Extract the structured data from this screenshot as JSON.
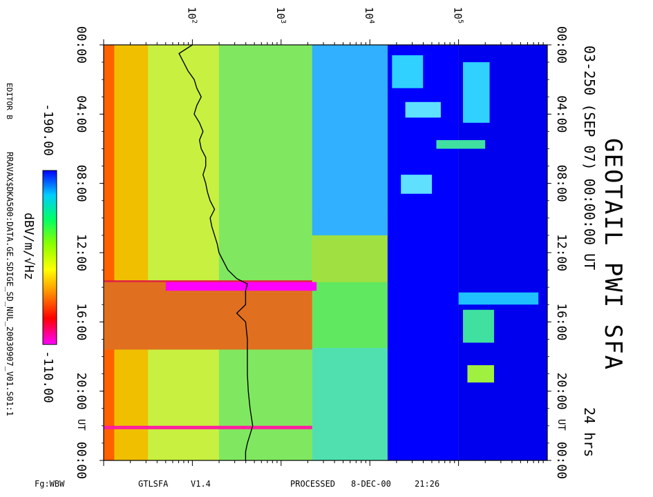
{
  "chart_data": {
    "type": "heatmap",
    "title": "GEOTAIL PWI SFA",
    "subtitle": "03-250 (SEP 07) 00:00:00 UT",
    "duration": "24 hrs",
    "time_ticks": [
      "00:00",
      "04:00",
      "08:00",
      "12:00",
      "16:00",
      "20:00",
      "00:00"
    ],
    "freq_ticks": [
      {
        "base": "10",
        "exp": "2"
      },
      {
        "base": "10",
        "exp": "3"
      },
      {
        "base": "10",
        "exp": "4"
      },
      {
        "base": "10",
        "exp": "5"
      }
    ],
    "ut_label": "UT",
    "frequency_scale": "log",
    "colorbar": {
      "min_label": "-190.00",
      "max_label": "-110.00",
      "unit": "dBV/m/√Hz",
      "colors": [
        "#0000ff",
        "#00ccff",
        "#00ff66",
        "#88ff00",
        "#ffff00",
        "#ff8800",
        "#ff0000",
        "#ff00ff"
      ]
    },
    "regions": [
      {
        "t0": 0,
        "t1": 24,
        "f0": 1.0,
        "f1": 3.0,
        "color": "#f0c000"
      },
      {
        "t0": 0,
        "t1": 24,
        "f0": 1.0,
        "f1": 1.12,
        "color": "#ff6000"
      },
      {
        "t0": 0,
        "t1": 24,
        "f0": 1.5,
        "f1": 2.3,
        "color": "#c8f040"
      },
      {
        "t0": 0,
        "t1": 24,
        "f0": 2.3,
        "f1": 3.35,
        "color": "#80e860"
      },
      {
        "t0": 0,
        "t1": 9.6,
        "f0": 3.35,
        "f1": 4.2,
        "color": "#40d8f0"
      },
      {
        "t0": 9.6,
        "t1": 13.7,
        "f0": 3.35,
        "f1": 4.2,
        "color": "#a0e040"
      },
      {
        "t0": 13.7,
        "t1": 17.5,
        "f0": 3.35,
        "f1": 4.2,
        "color": "#60e860"
      },
      {
        "t0": 17.5,
        "t1": 24,
        "f0": 3.35,
        "f1": 4.2,
        "color": "#50e0b0"
      },
      {
        "t0": 0,
        "t1": 24,
        "f0": 4.2,
        "f1": 5.0,
        "color": "#0000ff"
      },
      {
        "t0": 0,
        "t1": 24,
        "f0": 5.0,
        "f1": 6.0,
        "color": "#0000ee"
      },
      {
        "t0": 0,
        "t1": 11.0,
        "f0": 3.35,
        "f1": 4.2,
        "color": "#30b0ff"
      },
      {
        "t0": 13.6,
        "t1": 14.0,
        "f0": 1.0,
        "f1": 3.35,
        "color": "#e02040"
      },
      {
        "t0": 13.7,
        "t1": 17.6,
        "f0": 1.0,
        "f1": 3.35,
        "color": "#e07020"
      },
      {
        "t0": 13.7,
        "t1": 14.2,
        "f0": 1.7,
        "f1": 3.4,
        "color": "#ff00ff"
      },
      {
        "t0": 22.0,
        "t1": 22.2,
        "f0": 1.0,
        "f1": 3.35,
        "color": "#ff20a0"
      },
      {
        "t0": 5.5,
        "t1": 6.0,
        "f0": 4.75,
        "f1": 5.3,
        "color": "#40e0a0"
      },
      {
        "t0": 14.3,
        "t1": 15.0,
        "f0": 5.0,
        "f1": 5.9,
        "color": "#20c0ff"
      },
      {
        "t0": 15.3,
        "t1": 17.2,
        "f0": 5.05,
        "f1": 5.4,
        "color": "#40e0a0"
      },
      {
        "t0": 18.5,
        "t1": 19.5,
        "f0": 5.1,
        "f1": 5.4,
        "color": "#a0f040"
      },
      {
        "t0": 0.6,
        "t1": 2.5,
        "f0": 4.25,
        "f1": 4.6,
        "color": "#30d0ff"
      },
      {
        "t0": 1.0,
        "t1": 4.5,
        "f0": 5.05,
        "f1": 5.35,
        "color": "#30d0ff"
      },
      {
        "t0": 7.5,
        "t1": 8.6,
        "f0": 4.35,
        "f1": 4.7,
        "color": "#60e0ff"
      },
      {
        "t0": 3.3,
        "t1": 4.2,
        "f0": 4.4,
        "f1": 4.8,
        "color": "#60e0ff"
      }
    ],
    "trace": [
      [
        0.0,
        2.0
      ],
      [
        0.5,
        1.85
      ],
      [
        1.0,
        1.9
      ],
      [
        1.5,
        1.95
      ],
      [
        2.0,
        2.02
      ],
      [
        2.5,
        2.05
      ],
      [
        3.0,
        2.1
      ],
      [
        3.5,
        2.05
      ],
      [
        4.0,
        2.02
      ],
      [
        4.5,
        2.08
      ],
      [
        5.0,
        2.12
      ],
      [
        5.5,
        2.08
      ],
      [
        6.0,
        2.1
      ],
      [
        6.5,
        2.15
      ],
      [
        7.0,
        2.15
      ],
      [
        7.5,
        2.12
      ],
      [
        8.0,
        2.15
      ],
      [
        8.5,
        2.17
      ],
      [
        9.0,
        2.2
      ],
      [
        9.5,
        2.25
      ],
      [
        10.0,
        2.2
      ],
      [
        10.5,
        2.22
      ],
      [
        11.0,
        2.25
      ],
      [
        11.5,
        2.28
      ],
      [
        12.0,
        2.3
      ],
      [
        12.5,
        2.35
      ],
      [
        13.0,
        2.4
      ],
      [
        13.5,
        2.5
      ],
      [
        13.8,
        2.62
      ],
      [
        14.2,
        2.6
      ],
      [
        15.0,
        2.6
      ],
      [
        15.5,
        2.5
      ],
      [
        16.0,
        2.6
      ],
      [
        17.0,
        2.62
      ],
      [
        18.0,
        2.62
      ],
      [
        19.0,
        2.62
      ],
      [
        20.0,
        2.63
      ],
      [
        21.0,
        2.65
      ],
      [
        22.0,
        2.68
      ],
      [
        22.5,
        2.65
      ],
      [
        23.0,
        2.62
      ],
      [
        23.5,
        2.6
      ],
      [
        24.0,
        2.6
      ]
    ]
  },
  "labels": {
    "editor": "EDITOR B",
    "file_path": "RRAVAX$DKA500:DATA.GE.SDIGE_SD_NUL_20030907_V01.S01:1",
    "fg_label": "Fg:WBW",
    "program": "GTLSFA",
    "version": "V1.4",
    "processed": "PROCESSED",
    "processed_date": "8-DEC-00",
    "processed_time": "21:26"
  }
}
